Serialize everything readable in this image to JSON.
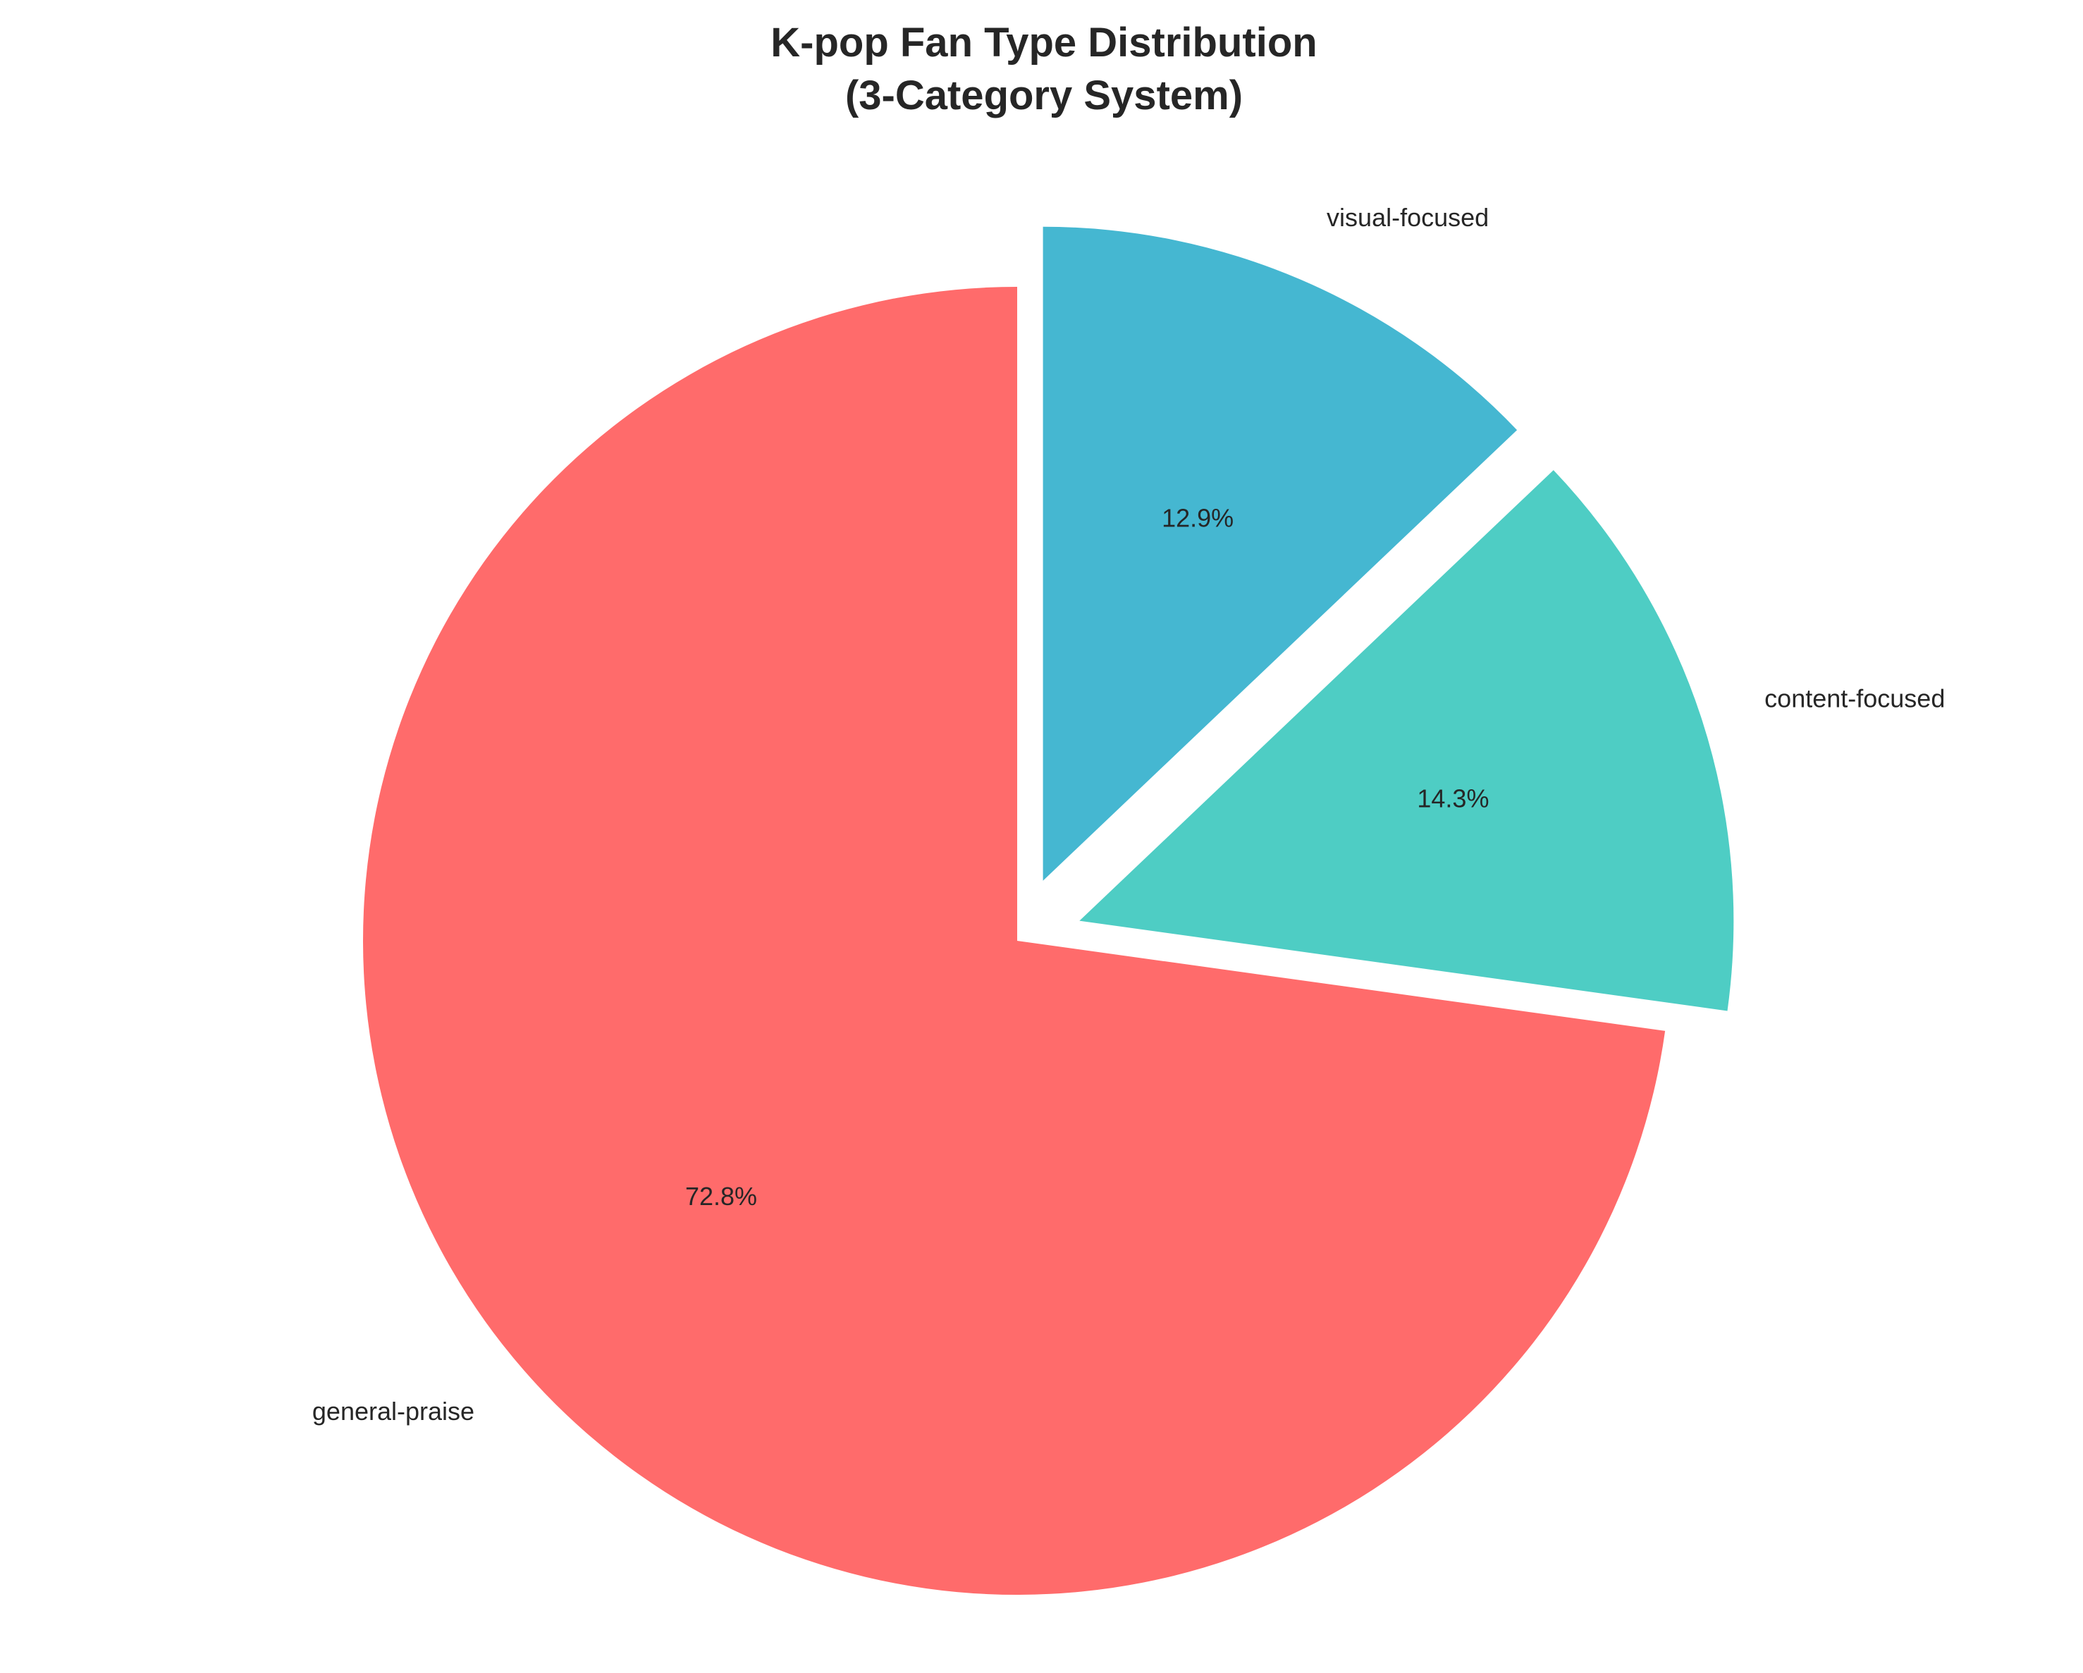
{
  "chart_data": {
    "type": "pie",
    "title_lines": [
      "K-pop Fan Type Distribution",
      "(3-Category System)"
    ],
    "slices": [
      {
        "label": "general-praise",
        "value": 72.8,
        "pct_label": "72.8%",
        "color": "#FF6B6B",
        "exploded": false
      },
      {
        "label": "content-focused",
        "value": 14.3,
        "pct_label": "14.3%",
        "color": "#4ECDC4",
        "exploded": true
      },
      {
        "label": "visual-focused",
        "value": 12.9,
        "pct_label": "12.9%",
        "color": "#45B7D1",
        "exploded": true
      }
    ],
    "start_angle": "90 degrees (top)",
    "direction": "counterclockwise",
    "legend": "none"
  }
}
